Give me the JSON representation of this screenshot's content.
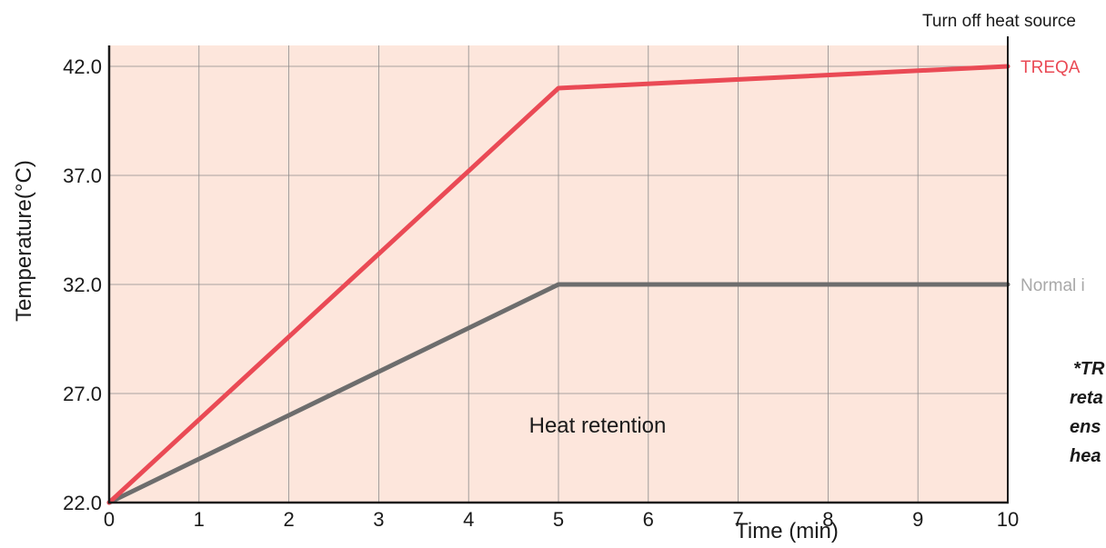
{
  "chart_data": {
    "type": "line",
    "title": "",
    "xlabel": "Time (min)",
    "ylabel": "Temperature(°C)",
    "xlim": [
      0,
      10
    ],
    "ylim": [
      22,
      43
    ],
    "x_ticks": [
      0,
      1,
      2,
      3,
      4,
      5,
      6,
      7,
      8,
      9,
      10
    ],
    "x_tick_labels": [
      "0",
      "1",
      "2",
      "3",
      "4",
      "5",
      "6",
      "7",
      "8",
      "9",
      "10"
    ],
    "y_ticks": [
      22,
      27,
      32,
      37,
      42
    ],
    "y_tick_labels": [
      "22.0",
      "27.0",
      "32.0",
      "37.0",
      "42.0"
    ],
    "grid": true,
    "background_color": "#fde6dc",
    "series": [
      {
        "name": "TREQA",
        "color": "#ea4a55",
        "x": [
          0,
          5,
          10
        ],
        "y": [
          22,
          41,
          42
        ]
      },
      {
        "name": "Normal i",
        "color": "#6d6d6d",
        "label_color": "#a8a8a8",
        "x": [
          0,
          5,
          10
        ],
        "y": [
          22,
          32,
          32
        ]
      }
    ],
    "annotations": {
      "turn_off": "Turn off heat source",
      "heat_retention": "Heat retention",
      "note_lines": [
        "*TR",
        "reta",
        "ens",
        "hea"
      ]
    }
  }
}
